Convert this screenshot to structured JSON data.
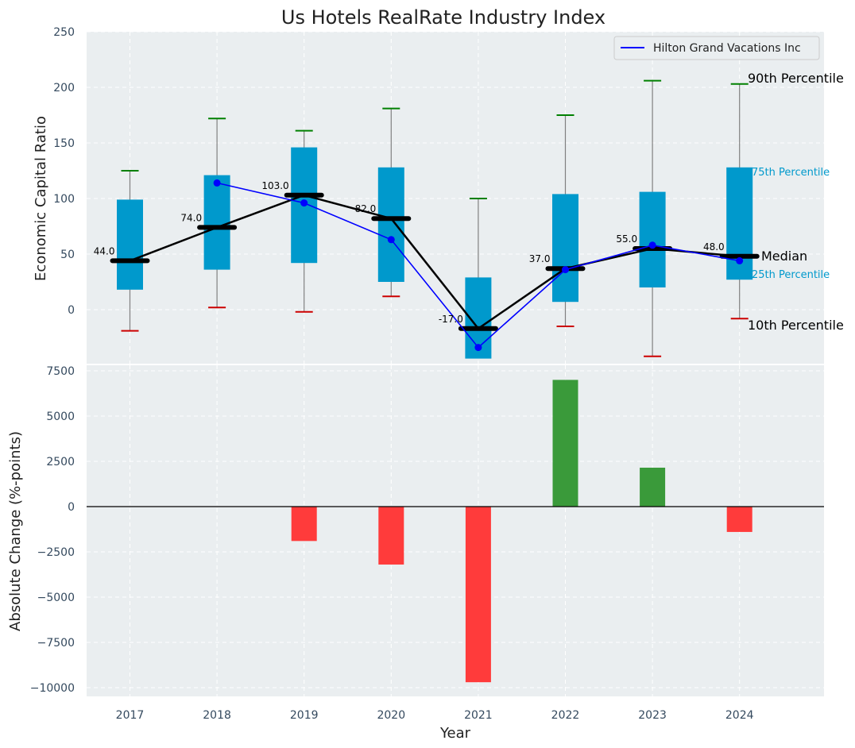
{
  "chart_data": [
    {
      "type": "box",
      "title": "Us Hotels RealRate Industry Index",
      "xlabel": "",
      "ylabel": "Economic Capital Ratio",
      "ylim": [
        -48,
        250
      ],
      "yticks": [
        0,
        50,
        100,
        150,
        200,
        250
      ],
      "grid": true,
      "legend_position": "top-right",
      "categories": [
        "2017",
        "2018",
        "2019",
        "2020",
        "2021",
        "2022",
        "2023",
        "2024"
      ],
      "p10": [
        -19,
        2,
        -2,
        12,
        -17,
        -15,
        -42,
        -8
      ],
      "p25": [
        18,
        36,
        42,
        25,
        -44,
        7,
        20,
        27
      ],
      "median": [
        44,
        74,
        103,
        82,
        -17,
        37,
        55,
        48
      ],
      "median_labels": [
        "44.0",
        "74.0",
        "103.0",
        "82.0",
        "-17.0",
        "37.0",
        "55.0",
        "48.0"
      ],
      "p75": [
        99,
        121,
        146,
        128,
        29,
        104,
        106,
        128
      ],
      "p90": [
        125,
        172,
        161,
        181,
        100,
        175,
        206,
        203
      ],
      "series": [
        {
          "name": "Hilton Grand Vacations Inc",
          "color": "#0000ff",
          "x": [
            "2018",
            "2019",
            "2020",
            "2021",
            "2022",
            "2023",
            "2024"
          ],
          "values": [
            114,
            96,
            63,
            -34,
            36,
            58,
            44
          ]
        }
      ],
      "annotations": {
        "p90": "90th Percentile",
        "p75": "75th Percentile",
        "median": "Median",
        "p25": "25th Percentile",
        "p10": "10th Percentile"
      },
      "colors": {
        "box": "#0099cc",
        "median_line": "#000000",
        "p90_cap": "#008000",
        "p10_cap": "#cc0000",
        "whisker": "#808080",
        "background": "#eaeef0"
      }
    },
    {
      "type": "bar",
      "xlabel": "Year",
      "ylabel": "Absolute Change (%-points)",
      "ylim": [
        -10400,
        8000
      ],
      "yticks": [
        -10000,
        -7500,
        -5000,
        -2500,
        0,
        2500,
        5000,
        7500
      ],
      "ytick_labels": [
        "−10000",
        "−7500",
        "−5000",
        "−2500",
        "0",
        "2500",
        "5000",
        "7500"
      ],
      "categories": [
        "2017",
        "2018",
        "2019",
        "2020",
        "2021",
        "2022",
        "2023",
        "2024"
      ],
      "values": [
        0,
        0,
        -1900,
        -3200,
        -9700,
        7000,
        2150,
        -1400
      ],
      "colors": {
        "positive": "#3a9a3a",
        "negative": "#ff3b3b"
      }
    }
  ]
}
